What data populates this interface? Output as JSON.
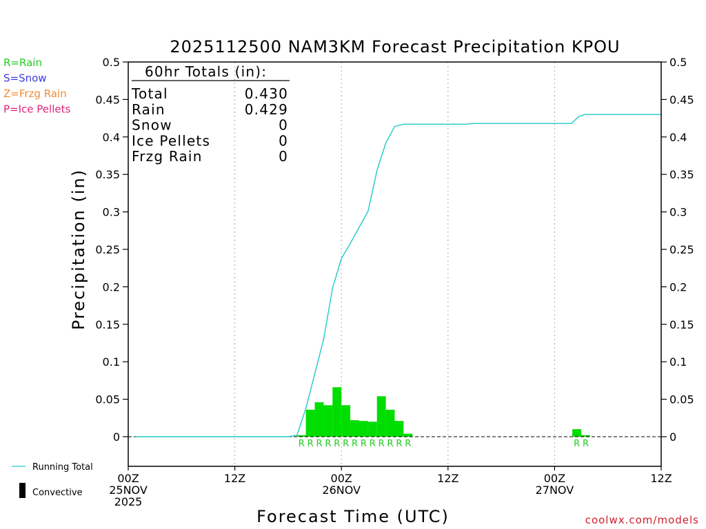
{
  "chart_data": {
    "type": "bar+line",
    "title": "2025112500 NAM3KM Forecast Precipitation KPOU",
    "xlabel": "Forecast Time (UTC)",
    "ylabel": "Precipitation (in)",
    "ylim": [
      -0.04,
      0.5
    ],
    "xlim_hours": [
      0,
      60
    ],
    "y_ticks": [
      0,
      0.05,
      0.1,
      0.15,
      0.2,
      0.25,
      0.3,
      0.35,
      0.4,
      0.45,
      0.5
    ],
    "x_ticks": [
      {
        "hour": 0,
        "labels": [
          "00Z",
          "25NOV",
          "2025"
        ]
      },
      {
        "hour": 12,
        "labels": [
          "12Z"
        ]
      },
      {
        "hour": 24,
        "labels": [
          "00Z",
          "26NOV"
        ]
      },
      {
        "hour": 36,
        "labels": [
          "12Z"
        ]
      },
      {
        "hour": 48,
        "labels": [
          "00Z",
          "27NOV"
        ]
      },
      {
        "hour": 60,
        "labels": [
          "12Z"
        ]
      }
    ],
    "grid_hours": [
      12,
      24,
      36,
      48
    ],
    "hourly_precip": {
      "series_name": "Rain",
      "color": "#00dd00",
      "bars": [
        {
          "hour": 19,
          "value": 0.002
        },
        {
          "hour": 20,
          "value": 0.036
        },
        {
          "hour": 21,
          "value": 0.046
        },
        {
          "hour": 22,
          "value": 0.042
        },
        {
          "hour": 23,
          "value": 0.066
        },
        {
          "hour": 24,
          "value": 0.042
        },
        {
          "hour": 25,
          "value": 0.022
        },
        {
          "hour": 26,
          "value": 0.021
        },
        {
          "hour": 27,
          "value": 0.02
        },
        {
          "hour": 28,
          "value": 0.054
        },
        {
          "hour": 29,
          "value": 0.036
        },
        {
          "hour": 30,
          "value": 0.021
        },
        {
          "hour": 31,
          "value": 0.004
        },
        {
          "hour": 50,
          "value": 0.01
        },
        {
          "hour": 51,
          "value": 0.002
        }
      ]
    },
    "running_total": {
      "name": "Running Total",
      "color": "#20c8c8",
      "points": [
        [
          0.8,
          0.0
        ],
        [
          18.0,
          0.0
        ],
        [
          19.0,
          0.002
        ],
        [
          20.0,
          0.038
        ],
        [
          22.0,
          0.13
        ],
        [
          23.0,
          0.198
        ],
        [
          24.0,
          0.238
        ],
        [
          25.0,
          0.258
        ],
        [
          27.0,
          0.301
        ],
        [
          28.0,
          0.355
        ],
        [
          29.0,
          0.392
        ],
        [
          30.0,
          0.414
        ],
        [
          31.0,
          0.417
        ],
        [
          38.0,
          0.417
        ],
        [
          39.0,
          0.418
        ],
        [
          49.9,
          0.418
        ],
        [
          50.7,
          0.427
        ],
        [
          51.4,
          0.43
        ],
        [
          60.0,
          0.43
        ]
      ]
    },
    "precip_type_markers": [
      {
        "hour": 19,
        "label": "R"
      },
      {
        "hour": 20,
        "label": "R"
      },
      {
        "hour": 21,
        "label": "R"
      },
      {
        "hour": 22,
        "label": "R"
      },
      {
        "hour": 23,
        "label": "R"
      },
      {
        "hour": 24,
        "label": "R"
      },
      {
        "hour": 25,
        "label": "R"
      },
      {
        "hour": 26,
        "label": "R"
      },
      {
        "hour": 27,
        "label": "R"
      },
      {
        "hour": 28,
        "label": "R"
      },
      {
        "hour": 29,
        "label": "R"
      },
      {
        "hour": 30,
        "label": "R"
      },
      {
        "hour": 31,
        "label": "R"
      },
      {
        "hour": 50,
        "label": "R"
      },
      {
        "hour": 51,
        "label": "R"
      }
    ],
    "totals_box": {
      "heading": "60hr Totals (in):",
      "rows": [
        {
          "label": "Total",
          "value": "0.430"
        },
        {
          "label": "Rain",
          "value": "0.429"
        },
        {
          "label": "Snow",
          "value": "0"
        },
        {
          "label": "Ice Pellets",
          "value": "0"
        },
        {
          "label": "Frzg Rain",
          "value": "0"
        }
      ]
    },
    "type_legend": [
      {
        "text": "R=Rain",
        "color": "#22cc22"
      },
      {
        "text": "S=Snow",
        "color": "#3a3ae6"
      },
      {
        "text": "Z=Frzg Rain",
        "color": "#f08c30"
      },
      {
        "text": "P=Ice Pellets",
        "color": "#e0207a"
      }
    ],
    "series_legend": [
      {
        "text": "Running Total",
        "symbol": "line",
        "color": "#20c8c8"
      },
      {
        "text": "Convective",
        "symbol": "bar",
        "color": "#000000"
      }
    ],
    "credit": {
      "text": "coolwx.com/models",
      "color": "#d01e2a"
    }
  }
}
